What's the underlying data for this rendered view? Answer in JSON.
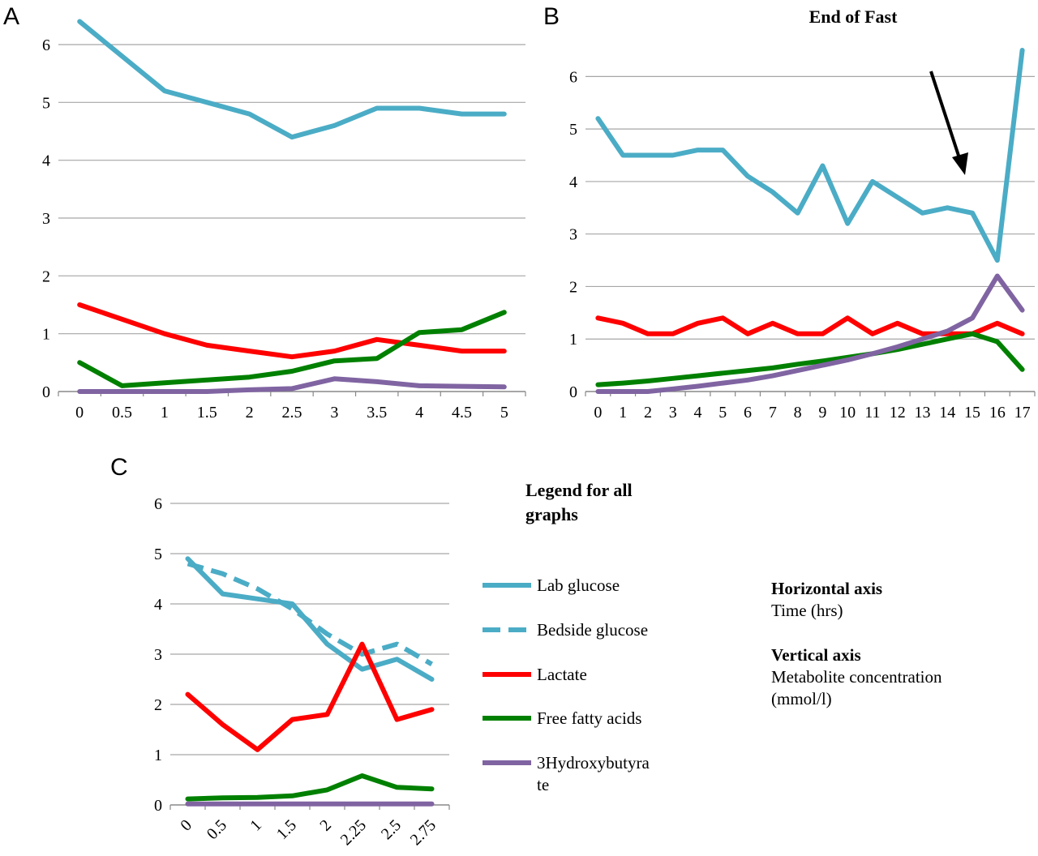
{
  "colors": {
    "lab_glucose": "#4bacc6",
    "bedside_glucose": "#4bacc6",
    "lactate": "#ff0000",
    "ffa": "#008000",
    "hydroxybutyrate": "#8064a2",
    "grid": "#a6a6a6"
  },
  "legend": {
    "title_line1": "Legend for all",
    "title_line2": "graphs",
    "items": [
      {
        "key": "lab_glucose",
        "label_line1": "Lab glucose",
        "label_line2": "",
        "style": "solid"
      },
      {
        "key": "bedside_glucose",
        "label_line1": "Bedside glucose",
        "label_line2": "",
        "style": "dashed"
      },
      {
        "key": "lactate",
        "label_line1": "Lactate",
        "label_line2": "",
        "style": "solid"
      },
      {
        "key": "ffa",
        "label_line1": "Free fatty acids",
        "label_line2": "",
        "style": "solid"
      },
      {
        "key": "hydroxybutyrate",
        "label_line1": "3Hydroxybutyra",
        "label_line2": "te",
        "style": "solid"
      }
    ]
  },
  "axes_note": {
    "horizontal_head": "Horizontal axis",
    "horizontal_text": "Time (hrs)",
    "vertical_head": "Vertical axis",
    "vertical_text_line1": "Metabolite concentration",
    "vertical_text_line2": "(mmol/l)"
  },
  "chart_data": [
    {
      "panel": "A",
      "type": "line",
      "title": "",
      "categories": [
        "0",
        "0.5",
        "1",
        "1.5",
        "2",
        "2.5",
        "3",
        "3.5",
        "4",
        "4.5",
        "5"
      ],
      "ylim": [
        0,
        6
      ],
      "yticks": [
        "0",
        "1",
        "2",
        "3",
        "4",
        "5",
        "6"
      ],
      "grid": true,
      "series": [
        {
          "key": "lab_glucose",
          "values": [
            6.4,
            5.8,
            5.2,
            5.0,
            4.8,
            4.4,
            4.6,
            4.9,
            4.9,
            4.8,
            4.8
          ]
        },
        {
          "key": "lactate",
          "values": [
            1.5,
            1.25,
            1.0,
            0.8,
            0.7,
            0.6,
            0.7,
            0.9,
            0.8,
            0.7,
            0.7
          ]
        },
        {
          "key": "ffa",
          "values": [
            0.5,
            0.1,
            0.15,
            0.2,
            0.25,
            0.35,
            0.53,
            0.57,
            1.02,
            1.07,
            1.37
          ]
        },
        {
          "key": "hydroxybutyrate",
          "values": [
            0.0,
            0.0,
            0.0,
            0.0,
            0.03,
            0.05,
            0.22,
            0.17,
            0.1,
            0.09,
            0.08
          ]
        }
      ]
    },
    {
      "panel": "B",
      "type": "line",
      "title": "End of Fast",
      "categories": [
        "0",
        "1",
        "2",
        "3",
        "4",
        "5",
        "6",
        "7",
        "8",
        "9",
        "10",
        "11",
        "12",
        "13",
        "14",
        "15",
        "16",
        "17"
      ],
      "ylim": [
        0,
        6.5
      ],
      "yticks": [
        "0",
        "1",
        "2",
        "3",
        "4",
        "5",
        "6"
      ],
      "grid": true,
      "annotation": "arrow pointing to time 15",
      "series": [
        {
          "key": "lab_glucose",
          "values": [
            5.2,
            4.5,
            4.5,
            4.5,
            4.6,
            4.6,
            4.1,
            3.8,
            3.4,
            4.3,
            3.2,
            4.0,
            3.7,
            3.4,
            3.5,
            3.4,
            2.5,
            6.5
          ]
        },
        {
          "key": "lactate",
          "values": [
            1.4,
            1.3,
            1.1,
            1.1,
            1.3,
            1.4,
            1.1,
            1.3,
            1.1,
            1.1,
            1.4,
            1.1,
            1.3,
            1.1,
            1.1,
            1.1,
            1.3,
            1.1
          ]
        },
        {
          "key": "ffa",
          "values": [
            0.13,
            0.16,
            0.2,
            0.25,
            0.3,
            0.35,
            0.4,
            0.45,
            0.52,
            0.58,
            0.65,
            0.72,
            0.8,
            0.9,
            1.0,
            1.1,
            0.95,
            0.42
          ]
        },
        {
          "key": "hydroxybutyrate",
          "values": [
            0.0,
            0.0,
            0.0,
            0.05,
            0.1,
            0.16,
            0.22,
            0.3,
            0.4,
            0.5,
            0.6,
            0.72,
            0.85,
            1.0,
            1.15,
            1.4,
            2.2,
            1.55
          ]
        }
      ]
    },
    {
      "panel": "C",
      "type": "line",
      "title": "",
      "categories": [
        "0",
        "0.5",
        "1",
        "1.5",
        "2",
        "2.25",
        "2.5",
        "2.75"
      ],
      "ylim": [
        0,
        6
      ],
      "yticks": [
        "0",
        "1",
        "2",
        "3",
        "4",
        "5",
        "6"
      ],
      "grid": true,
      "series": [
        {
          "key": "lab_glucose",
          "values": [
            4.9,
            4.2,
            4.1,
            4.0,
            3.2,
            2.7,
            2.9,
            2.5
          ]
        },
        {
          "key": "bedside_glucose",
          "values": [
            4.8,
            4.6,
            4.3,
            3.9,
            3.4,
            3.0,
            3.2,
            2.8
          ]
        },
        {
          "key": "lactate",
          "values": [
            2.2,
            1.6,
            1.1,
            1.7,
            1.8,
            3.2,
            1.7,
            1.9
          ]
        },
        {
          "key": "ffa",
          "values": [
            0.12,
            0.14,
            0.15,
            0.18,
            0.3,
            0.58,
            0.35,
            0.32
          ]
        },
        {
          "key": "hydroxybutyrate",
          "values": [
            0.02,
            0.02,
            0.02,
            0.02,
            0.02,
            0.02,
            0.02,
            0.02
          ]
        }
      ]
    }
  ]
}
